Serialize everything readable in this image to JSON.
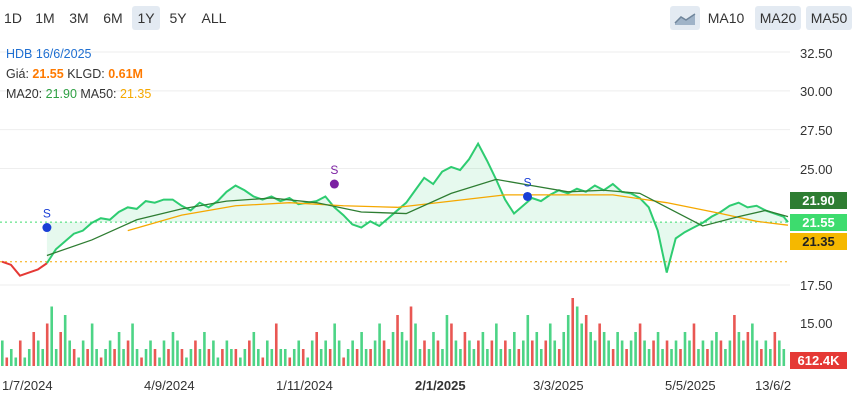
{
  "toolbar": {
    "ranges": [
      "1D",
      "1M",
      "3M",
      "6M",
      "1Y",
      "5Y",
      "ALL"
    ],
    "active_range": "1Y",
    "area_icon": "area-chart-icon",
    "ma_buttons": [
      "MA10",
      "MA20",
      "MA50"
    ],
    "active_ma": [
      "MA20",
      "MA50"
    ]
  },
  "info": {
    "title": "HDB 16/6/2025",
    "price_label": "Giá:",
    "price_value": "21.55",
    "volume_label": "KLGD:",
    "volume_value": "0.61M",
    "ma20_label": "MA20:",
    "ma20_value": "21.90",
    "ma50_label": "MA50:",
    "ma50_value": "21.35"
  },
  "tags": {
    "ma20": "21.90",
    "price": "21.55",
    "ma50": "21.35",
    "volume": "612.4K"
  },
  "colors": {
    "up": "#2ecc71",
    "down": "#e53935",
    "ma20": "#2e7d32",
    "ma50": "#f5a800",
    "marker_blue": "#1a3fd6",
    "marker_purple": "#7b1fa2",
    "title": "#1f6fd1",
    "accent": "#ff7a00"
  },
  "chart_data": {
    "type": "line",
    "y_ticks": [
      "32.50",
      "30.00",
      "27.50",
      "25.00",
      "17.50",
      "15.00"
    ],
    "ylim": [
      14.5,
      33.5
    ],
    "x_ticks": [
      "1/7/2024",
      "4/9/2024",
      "1/11/2024",
      "2/1/2025",
      "3/3/2025",
      "5/5/2025",
      "13/6/2"
    ],
    "x_ticks_bold": [
      "2/1/2025"
    ],
    "price": [
      [
        0,
        19.0
      ],
      [
        2,
        18.8
      ],
      [
        4,
        18.1
      ],
      [
        6,
        18.3
      ],
      [
        8,
        18.5
      ],
      [
        10,
        18.9
      ],
      [
        12,
        19.8
      ],
      [
        14,
        20.3
      ],
      [
        16,
        20.8
      ],
      [
        18,
        21.0
      ],
      [
        20,
        21.5
      ],
      [
        22,
        21.8
      ],
      [
        24,
        21.7
      ],
      [
        26,
        22.2
      ],
      [
        28,
        22.5
      ],
      [
        30,
        22.4
      ],
      [
        32,
        22.9
      ],
      [
        34,
        22.8
      ],
      [
        36,
        23.0
      ],
      [
        38,
        23.0
      ],
      [
        40,
        22.6
      ],
      [
        42,
        22.3
      ],
      [
        44,
        22.8
      ],
      [
        46,
        22.5
      ],
      [
        48,
        22.9
      ],
      [
        50,
        23.5
      ],
      [
        52,
        23.9
      ],
      [
        54,
        23.6
      ],
      [
        56,
        23.2
      ],
      [
        58,
        23.0
      ],
      [
        60,
        23.2
      ],
      [
        62,
        22.9
      ],
      [
        64,
        23.1
      ],
      [
        66,
        22.7
      ],
      [
        68,
        22.8
      ],
      [
        70,
        22.9
      ],
      [
        72,
        23.2
      ],
      [
        74,
        22.5
      ],
      [
        76,
        22.0
      ],
      [
        78,
        21.4
      ],
      [
        80,
        21.2
      ],
      [
        82,
        21.6
      ],
      [
        84,
        21.3
      ],
      [
        86,
        21.8
      ],
      [
        88,
        22.3
      ],
      [
        90,
        22.8
      ],
      [
        92,
        23.6
      ],
      [
        94,
        24.4
      ],
      [
        96,
        24.0
      ],
      [
        98,
        24.8
      ],
      [
        100,
        25.1
      ],
      [
        102,
        24.9
      ],
      [
        104,
        25.6
      ],
      [
        106,
        26.6
      ],
      [
        108,
        25.5
      ],
      [
        110,
        24.3
      ],
      [
        112,
        23.0
      ],
      [
        114,
        22.1
      ],
      [
        116,
        22.6
      ],
      [
        118,
        23.1
      ],
      [
        120,
        22.9
      ],
      [
        122,
        23.3
      ],
      [
        124,
        23.6
      ],
      [
        126,
        23.4
      ],
      [
        128,
        23.7
      ],
      [
        130,
        23.5
      ],
      [
        132,
        23.9
      ],
      [
        134,
        23.6
      ],
      [
        136,
        24.0
      ],
      [
        138,
        23.5
      ],
      [
        140,
        23.4
      ],
      [
        142,
        23.1
      ],
      [
        144,
        22.5
      ],
      [
        146,
        21.0
      ],
      [
        148,
        18.3
      ],
      [
        150,
        20.5
      ],
      [
        152,
        20.9
      ],
      [
        154,
        21.2
      ],
      [
        156,
        21.5
      ],
      [
        158,
        21.9
      ],
      [
        160,
        22.2
      ],
      [
        162,
        22.6
      ],
      [
        164,
        22.8
      ],
      [
        166,
        22.5
      ],
      [
        168,
        22.6
      ],
      [
        170,
        22.3
      ],
      [
        172,
        22.1
      ],
      [
        174,
        21.9
      ],
      [
        175,
        21.55
      ]
    ],
    "ma20": [
      [
        10,
        19.4
      ],
      [
        20,
        20.4
      ],
      [
        30,
        21.7
      ],
      [
        40,
        22.4
      ],
      [
        50,
        22.9
      ],
      [
        60,
        23.1
      ],
      [
        70,
        22.8
      ],
      [
        80,
        22.2
      ],
      [
        90,
        22.1
      ],
      [
        100,
        23.4
      ],
      [
        110,
        24.3
      ],
      [
        118,
        23.9
      ],
      [
        126,
        23.5
      ],
      [
        134,
        23.6
      ],
      [
        142,
        23.4
      ],
      [
        148,
        22.5
      ],
      [
        156,
        21.3
      ],
      [
        164,
        21.9
      ],
      [
        170,
        22.3
      ],
      [
        175,
        21.9
      ]
    ],
    "ma50": [
      [
        28,
        21.0
      ],
      [
        40,
        22.0
      ],
      [
        52,
        22.6
      ],
      [
        64,
        22.8
      ],
      [
        76,
        22.6
      ],
      [
        88,
        22.5
      ],
      [
        100,
        22.9
      ],
      [
        112,
        23.3
      ],
      [
        124,
        23.3
      ],
      [
        136,
        23.3
      ],
      [
        148,
        22.8
      ],
      [
        160,
        22.1
      ],
      [
        168,
        21.6
      ],
      [
        175,
        21.35
      ]
    ],
    "markers": [
      {
        "x": 10,
        "y": 21.2,
        "label": "S"
      },
      {
        "x": 74,
        "y": 24.0,
        "label": "S"
      },
      {
        "x": 117,
        "y": 23.2,
        "label": "S"
      }
    ],
    "reference_lines": [
      21.55,
      19.0
    ],
    "volume": [
      3,
      1,
      2,
      1,
      3,
      1,
      2,
      4,
      3,
      2,
      5,
      7,
      2,
      4,
      6,
      3,
      2,
      1,
      3,
      2,
      5,
      2,
      1,
      2,
      3,
      2,
      4,
      2,
      3,
      5,
      2,
      1,
      2,
      3,
      2,
      1,
      3,
      2,
      4,
      3,
      2,
      1,
      2,
      3,
      2,
      4,
      2,
      3,
      1,
      2,
      3,
      2,
      2,
      1,
      2,
      3,
      4,
      2,
      1,
      3,
      2,
      5,
      2,
      2,
      1,
      2,
      3,
      2,
      1,
      3,
      4,
      2,
      3,
      2,
      5,
      3,
      1,
      2,
      3,
      2,
      4,
      2,
      2,
      3,
      5,
      3,
      2,
      4,
      6,
      4,
      3,
      7,
      5,
      2,
      3,
      2,
      4,
      3,
      2,
      6,
      5,
      3,
      2,
      4,
      3,
      2,
      3,
      4,
      2,
      3,
      5,
      2,
      3,
      2,
      4,
      2,
      3,
      6,
      3,
      4,
      2,
      3,
      5,
      3,
      2,
      4,
      6,
      8,
      7,
      5,
      6,
      4,
      3,
      5,
      4,
      3,
      2,
      4,
      3,
      2,
      3,
      4,
      5,
      3,
      2,
      3,
      4,
      2,
      3,
      2,
      3,
      2,
      4,
      3,
      5,
      2,
      3,
      2,
      3,
      4,
      3,
      2,
      3,
      6,
      4,
      3,
      4,
      5,
      3,
      2,
      3,
      2,
      4,
      3,
      2
    ]
  }
}
